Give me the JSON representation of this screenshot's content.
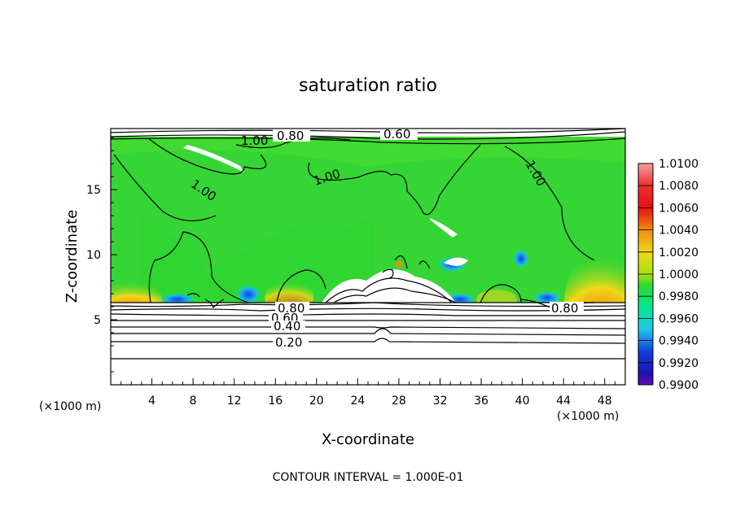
{
  "chart_data": {
    "type": "heatmap",
    "title": "saturation ratio",
    "xlabel": "X-coordinate",
    "ylabel": "Z-coordinate",
    "x_unit": "(×1000 m)",
    "y_unit": "(×1000 m)",
    "xlim": [
      0,
      50
    ],
    "ylim": [
      0,
      19.7
    ],
    "x_ticks": [
      4,
      8,
      12,
      16,
      20,
      24,
      28,
      32,
      36,
      40,
      44,
      48
    ],
    "y_ticks": [
      5,
      10,
      15
    ],
    "colorbar": {
      "levels": [
        "1.0100",
        "1.0080",
        "1.0060",
        "1.0040",
        "1.0020",
        "1.0000",
        "0.9980",
        "0.9960",
        "0.9940",
        "0.9920",
        "0.9900"
      ],
      "colors": [
        "#f4a0a0",
        "#ee3030",
        "#e81010",
        "#f08a10",
        "#f0d818",
        "#e8ee10",
        "#2ed82e",
        "#00e8a0",
        "#20b0f0",
        "#1040e0",
        "#6010b0"
      ]
    },
    "contour_labels": [
      "0.80",
      "0.60",
      "1.00",
      "1.00",
      "1.00",
      "1.00",
      "0.80",
      "0.60",
      "0.40",
      "0.20",
      "0.80"
    ],
    "contour_interval_note": "CONTOUR INTERVAL = 1.000E-01"
  }
}
